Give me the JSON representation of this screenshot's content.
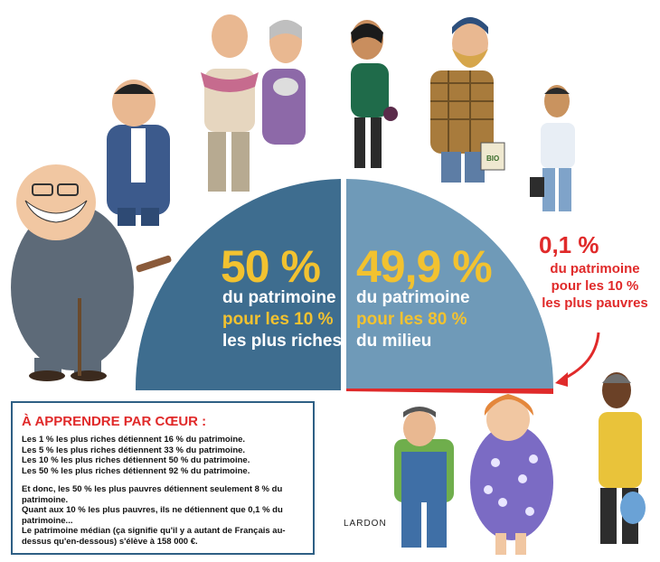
{
  "chart_data": {
    "type": "pie",
    "slices": [
      {
        "value": 50,
        "label_value": "50 %",
        "label_lines": [
          "du patrimoine",
          "pour les 10 %",
          "les plus riches"
        ],
        "color": "#3e6d8f"
      },
      {
        "value": 49.9,
        "label_value": "49,9 %",
        "label_lines": [
          "du patrimoine",
          "pour les 80 %",
          "du milieu"
        ],
        "color": "#6f9ab8"
      },
      {
        "value": 0.1,
        "label_value": "0,1 %",
        "label_lines": [
          "du patrimoine",
          "pour les 10 %",
          "les plus pauvres"
        ],
        "color": "#e02a2a"
      }
    ]
  },
  "box": {
    "title": "À APPRENDRE PAR CŒUR :",
    "lines": [
      "Les 1 % les plus riches détiennent 16 % du patrimoine.",
      "Les 5 % les plus riches détiennent 33 % du patrimoine.",
      "Les 10 % les plus riches détiennent 50 % du patrimoine.",
      "Les 50 % les plus riches détiennent 92 % du patrimoine."
    ],
    "para2": "Et donc, les 50 % les plus pauvres détiennent seulement 8 % du patrimoine.",
    "para3": "Quant aux 10 % les plus pauvres, ils ne détiennent que 0,1 % du patrimoine...",
    "para4": "Le patrimoine médian (ça signifie qu'il y a autant de Français au-dessus qu'en-dessous) s'élève à 158 000 €."
  },
  "signature": "LARDON",
  "bag_label": "BIO"
}
